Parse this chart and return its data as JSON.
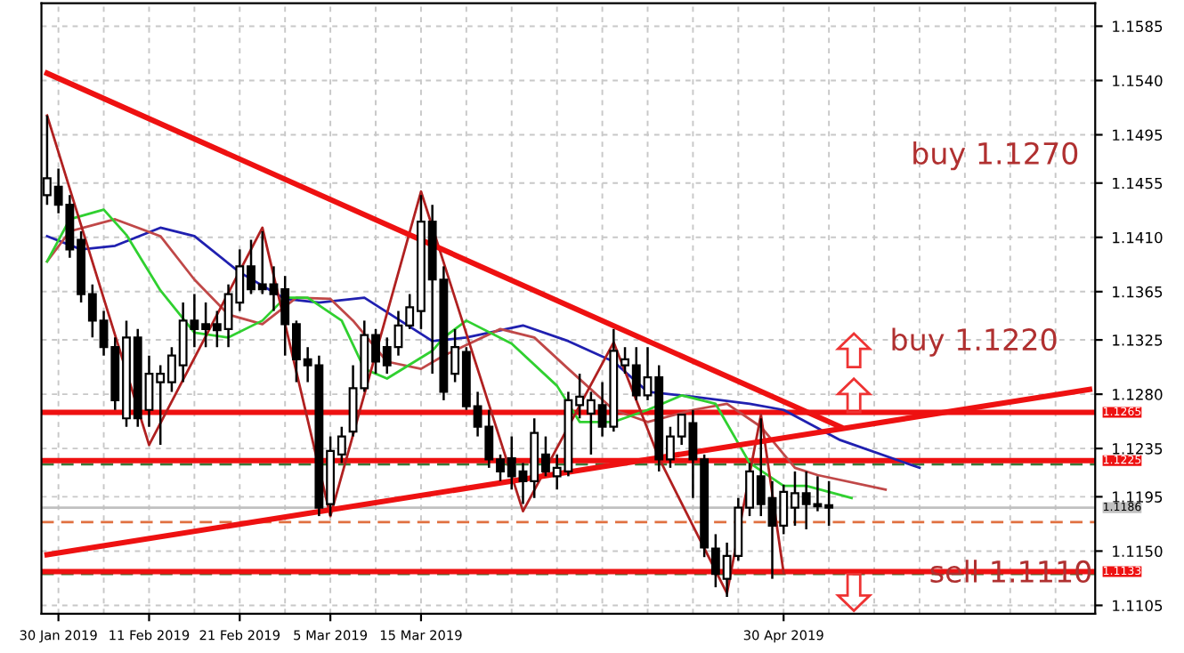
{
  "chart_data": {
    "type": "candlestick",
    "categories": [
      null,
      "30 Jan 2019",
      null,
      null,
      null,
      null,
      null,
      null,
      null,
      "11 Feb 2019",
      null,
      null,
      null,
      null,
      null,
      null,
      null,
      "21 Feb 2019",
      null,
      null,
      null,
      null,
      null,
      null,
      null,
      "5 Mar 2019",
      null,
      null,
      null,
      null,
      null,
      null,
      null,
      "15 Mar 2019",
      null,
      null,
      null,
      null,
      null,
      null,
      null,
      null,
      null,
      null,
      null,
      null,
      null,
      null,
      null,
      null,
      null,
      null,
      null,
      null,
      null,
      null,
      null,
      null,
      null,
      null,
      null,
      null,
      null,
      null,
      null,
      "30 Apr 2019",
      null,
      null,
      null,
      null,
      null,
      null,
      null,
      null,
      null,
      null,
      null,
      null,
      null,
      null,
      null,
      null,
      null,
      null,
      null,
      null,
      null,
      null,
      null,
      null,
      null,
      null,
      null
    ],
    "ohlc": [
      [
        1.1445,
        1.1511,
        1.1437,
        1.1459
      ],
      [
        1.1452,
        1.1467,
        1.143,
        1.1437
      ],
      [
        1.1437,
        1.1445,
        1.1393,
        1.14
      ],
      [
        1.1408,
        1.1415,
        1.1356,
        1.1363
      ],
      [
        1.1363,
        1.1371,
        1.1327,
        1.1341
      ],
      [
        1.1341,
        1.1349,
        1.1312,
        1.1319
      ],
      [
        1.1319,
        1.1327,
        1.1267,
        1.1275
      ],
      [
        1.126,
        1.1341,
        1.1253,
        1.1327
      ],
      [
        1.1327,
        1.1334,
        1.1253,
        1.126
      ],
      [
        1.1267,
        1.1312,
        1.1253,
        1.1297
      ],
      [
        1.129,
        1.1304,
        1.1238,
        1.1297
      ],
      [
        1.129,
        1.1319,
        1.1282,
        1.1312
      ],
      [
        1.1304,
        1.1356,
        1.129,
        1.1341
      ],
      [
        1.1341,
        1.1363,
        1.1319,
        1.1334
      ],
      [
        1.1338,
        1.1356,
        1.1319,
        1.1334
      ],
      [
        1.1338,
        1.1349,
        1.1319,
        1.1333
      ],
      [
        1.1334,
        1.1371,
        1.1319,
        1.1363
      ],
      [
        1.1356,
        1.14,
        1.1349,
        1.1386
      ],
      [
        1.1386,
        1.1408,
        1.1363,
        1.1367
      ],
      [
        1.1371,
        1.1415,
        1.1363,
        1.1367
      ],
      [
        1.1371,
        1.1386,
        1.1349,
        1.1363
      ],
      [
        1.1367,
        1.1378,
        1.1312,
        1.1338
      ],
      [
        1.1338,
        1.1341,
        1.129,
        1.1309
      ],
      [
        1.1309,
        1.1319,
        1.129,
        1.1304
      ],
      [
        1.1304,
        1.1312,
        1.1179,
        1.1186
      ],
      [
        1.1189,
        1.1245,
        1.1179,
        1.1233
      ],
      [
        1.123,
        1.1253,
        1.1223,
        1.1245
      ],
      [
        1.1249,
        1.1304,
        1.1245,
        1.1285
      ],
      [
        1.1285,
        1.1341,
        1.1282,
        1.1329
      ],
      [
        1.1329,
        1.1334,
        1.1297,
        1.1307
      ],
      [
        1.1319,
        1.1327,
        1.1297,
        1.1304
      ],
      [
        1.1319,
        1.1349,
        1.1312,
        1.1337
      ],
      [
        1.1337,
        1.1363,
        1.1334,
        1.1352
      ],
      [
        1.1349,
        1.1445,
        1.1334,
        1.1423
      ],
      [
        1.1423,
        1.1437,
        1.1297,
        1.1375
      ],
      [
        1.1375,
        1.1386,
        1.1275,
        1.1282
      ],
      [
        1.1297,
        1.1334,
        1.129,
        1.1319
      ],
      [
        1.1315,
        1.1319,
        1.1267,
        1.127
      ],
      [
        1.127,
        1.1282,
        1.1245,
        1.1253
      ],
      [
        1.1253,
        1.1267,
        1.1219,
        1.1226
      ],
      [
        1.1226,
        1.123,
        1.1208,
        1.1216
      ],
      [
        1.1227,
        1.1245,
        1.1201,
        1.1212
      ],
      [
        1.1216,
        1.1223,
        1.1189,
        1.1208
      ],
      [
        1.1208,
        1.126,
        1.1194,
        1.1248
      ],
      [
        1.123,
        1.1245,
        1.1212,
        1.1216
      ],
      [
        1.1212,
        1.123,
        1.1201,
        1.1219
      ],
      [
        1.1216,
        1.1282,
        1.1212,
        1.1275
      ],
      [
        1.1271,
        1.1297,
        1.126,
        1.1278
      ],
      [
        1.1264,
        1.1282,
        1.123,
        1.1275
      ],
      [
        1.1271,
        1.129,
        1.1245,
        1.1253
      ],
      [
        1.1253,
        1.1334,
        1.1249,
        1.1316
      ],
      [
        1.1304,
        1.1319,
        1.1297,
        1.1309
      ],
      [
        1.1304,
        1.1319,
        1.1275,
        1.1279
      ],
      [
        1.1279,
        1.1319,
        1.1275,
        1.1294
      ],
      [
        1.1294,
        1.1304,
        1.1216,
        1.1226
      ],
      [
        1.1226,
        1.1253,
        1.1219,
        1.1245
      ],
      [
        1.1245,
        1.1263,
        1.1238,
        1.1263
      ],
      [
        1.1256,
        1.1267,
        1.1194,
        1.1226
      ],
      [
        1.1226,
        1.123,
        1.1145,
        1.1153
      ],
      [
        1.1152,
        1.1164,
        1.112,
        1.1131
      ],
      [
        1.1127,
        1.1157,
        1.1112,
        1.1146
      ],
      [
        1.1146,
        1.1194,
        1.1142,
        1.1186
      ],
      [
        1.1186,
        1.1223,
        1.1179,
        1.1216
      ],
      [
        1.1212,
        1.126,
        1.1179,
        1.1189
      ],
      [
        1.1194,
        1.1208,
        1.1127,
        1.1171
      ],
      [
        1.1171,
        1.1205,
        1.1164,
        1.1199
      ],
      [
        1.1186,
        1.1216,
        1.1171,
        1.1198
      ],
      [
        1.1198,
        1.1216,
        1.1168,
        1.1189
      ],
      [
        1.1189,
        1.1212,
        1.1183,
        1.1187
      ],
      [
        1.1188,
        1.1208,
        1.1171,
        1.1186
      ],
      null,
      null,
      null,
      null,
      null,
      null,
      null,
      null,
      null,
      null,
      null,
      null,
      null,
      null,
      null,
      null,
      null,
      null,
      null,
      null,
      null,
      null,
      null
    ],
    "series": [
      {
        "type": "line",
        "color": "#2020b0",
        "values": [
          1.1411,
          null,
          null,
          1.14,
          null,
          null,
          1.1403,
          null,
          null,
          null,
          1.1418,
          null,
          null,
          1.1411,
          null,
          null,
          null,
          1.1381,
          null,
          null,
          null,
          1.1359,
          null,
          null,
          1.1356,
          null,
          null,
          null,
          1.136,
          null,
          null,
          null,
          null,
          null,
          1.1324,
          null,
          null,
          1.1327,
          null,
          null,
          null,
          null,
          1.1337,
          null,
          null,
          null,
          1.1324,
          null,
          null,
          null,
          1.1307,
          null,
          null,
          1.1282,
          null,
          null,
          null,
          1.1278,
          null,
          null,
          null,
          null,
          1.1272,
          null,
          null,
          1.1267,
          null,
          null,
          null,
          null,
          1.1242,
          null,
          null,
          null,
          null,
          null,
          null,
          1.1219,
          null,
          null,
          null,
          null,
          null,
          null,
          null,
          null,
          null,
          null,
          null,
          null,
          null,
          null,
          null
        ]
      },
      {
        "type": "line",
        "color": "#c04848",
        "values": [
          1.139,
          null,
          1.1415,
          null,
          null,
          null,
          1.1425,
          null,
          null,
          null,
          1.1411,
          null,
          null,
          1.1375,
          null,
          null,
          1.1346,
          null,
          null,
          1.1338,
          null,
          null,
          1.136,
          null,
          null,
          1.1359,
          null,
          1.1341,
          null,
          null,
          1.1307,
          null,
          null,
          1.1301,
          null,
          1.1312,
          null,
          null,
          null,
          null,
          1.1334,
          null,
          null,
          1.1327,
          null,
          null,
          1.1301,
          null,
          null,
          null,
          1.1267,
          null,
          null,
          1.1257,
          null,
          null,
          null,
          1.1267,
          null,
          null,
          1.1272,
          null,
          null,
          1.1253,
          null,
          null,
          1.1219,
          null,
          1.1213,
          null,
          null,
          null,
          null,
          null,
          1.1201,
          null,
          null,
          null,
          null,
          null,
          null,
          null,
          null,
          null,
          null,
          null,
          null,
          null,
          null,
          null,
          null,
          null,
          null
        ]
      },
      {
        "type": "line",
        "color": "#30d030",
        "values": [
          1.139,
          null,
          1.1425,
          null,
          null,
          1.1433,
          null,
          1.1412,
          null,
          null,
          1.1366,
          null,
          null,
          1.1331,
          null,
          null,
          1.1327,
          null,
          null,
          1.1341,
          null,
          1.136,
          null,
          1.136,
          null,
          null,
          1.1341,
          null,
          1.1301,
          null,
          1.1293,
          null,
          null,
          null,
          1.1316,
          1.1327,
          null,
          1.1341,
          null,
          null,
          null,
          1.1322,
          null,
          null,
          null,
          1.1287,
          null,
          1.1257,
          null,
          null,
          1.1257,
          null,
          null,
          1.1267,
          null,
          null,
          1.1279,
          null,
          null,
          1.1272,
          null,
          null,
          1.1223,
          null,
          null,
          1.1204,
          null,
          1.1204,
          null,
          null,
          null,
          1.1194,
          null,
          null,
          null,
          null,
          null,
          null,
          null,
          null,
          null,
          null,
          null,
          null,
          null,
          null,
          null,
          null,
          null,
          null,
          null,
          null,
          null
        ]
      },
      {
        "type": "line",
        "color": "#b02020",
        "values": [
          1.1511,
          null,
          null,
          null,
          null,
          null,
          null,
          null,
          null,
          1.1238,
          null,
          null,
          null,
          null,
          null,
          null,
          null,
          null,
          null,
          1.1418,
          null,
          null,
          null,
          null,
          null,
          1.1179,
          null,
          null,
          null,
          null,
          null,
          null,
          null,
          1.1448,
          null,
          null,
          null,
          null,
          null,
          null,
          null,
          null,
          1.1183,
          null,
          null,
          null,
          null,
          null,
          null,
          null,
          1.1323,
          null,
          null,
          null,
          1.1227,
          null,
          null,
          null,
          null,
          null,
          1.1115,
          null,
          null,
          1.1263,
          null,
          1.1132,
          null,
          null,
          null,
          null,
          null,
          null,
          null,
          null,
          null,
          null,
          null,
          null,
          null,
          null,
          null,
          null,
          null,
          null,
          null,
          null,
          null,
          null,
          null,
          null,
          null,
          null,
          null
        ]
      },
      {
        "type": "line",
        "color": "#ee1111",
        "values": [
          1.1546,
          null,
          null,
          null,
          null,
          null,
          null,
          null,
          null,
          null,
          null,
          null,
          null,
          null,
          null,
          null,
          null,
          null,
          null,
          null,
          null,
          null,
          null,
          null,
          null,
          null,
          null,
          null,
          null,
          null,
          null,
          null,
          null,
          null,
          null,
          null,
          null,
          null,
          null,
          null,
          null,
          null,
          null,
          null,
          null,
          null,
          null,
          null,
          null,
          null,
          null,
          null,
          null,
          null,
          null,
          null,
          null,
          null,
          null,
          null,
          null,
          null,
          null,
          null,
          null,
          null,
          null,
          null,
          null,
          null,
          1.1253,
          null,
          null,
          null,
          null,
          null,
          null,
          null,
          null,
          null,
          null,
          null,
          null,
          null,
          null,
          null,
          null,
          null,
          null,
          null,
          null,
          null,
          null
        ]
      },
      {
        "type": "line",
        "color": "#ee1111",
        "values": [
          1.1147,
          null,
          null,
          null,
          null,
          null,
          null,
          null,
          null,
          null,
          null,
          null,
          null,
          null,
          null,
          null,
          null,
          null,
          null,
          null,
          null,
          null,
          null,
          null,
          null,
          null,
          null,
          null,
          null,
          null,
          null,
          null,
          null,
          null,
          null,
          null,
          null,
          null,
          null,
          null,
          null,
          null,
          null,
          null,
          null,
          null,
          null,
          null,
          null,
          null,
          null,
          null,
          null,
          null,
          null,
          null,
          null,
          null,
          null,
          null,
          null,
          null,
          null,
          null,
          null,
          null,
          null,
          null,
          null,
          null,
          null,
          null,
          null,
          null,
          null,
          null,
          null,
          null,
          null,
          null,
          null,
          null,
          null,
          null,
          null,
          null,
          null,
          null,
          null,
          null,
          null,
          null,
          1.1284
        ]
      }
    ],
    "ref_lines": [
      {
        "axis": "y",
        "value": 1.1222,
        "color": "#3a7a3a",
        "line_style": "dashed"
      },
      {
        "axis": "y",
        "value": 1.1131,
        "color": "#3a7a3a",
        "line_style": "dashed"
      },
      {
        "axis": "y",
        "value": 1.1174,
        "color": "#e07040",
        "line_style": "dashed"
      },
      {
        "axis": "y",
        "value": 1.1186,
        "label": "1.1186",
        "color": "#c0c0c0",
        "line_style": "solid"
      },
      {
        "axis": "y",
        "value": 1.1265,
        "label": "1.1265",
        "color": "#ee1111",
        "line_style": "solid"
      },
      {
        "axis": "y",
        "value": 1.1225,
        "label": "1.1225",
        "color": "#ee1111",
        "line_style": "solid"
      },
      {
        "axis": "y",
        "value": 1.1133,
        "label": "1.1133",
        "color": "#ee1111",
        "line_style": "solid"
      }
    ],
    "annotations": [
      "buy 1.1270",
      "buy 1.1220",
      "sell 1.1110"
    ],
    "ylim": [
      1.1098,
      1.1604
    ],
    "yticks": [
      1.1585,
      {
        "value": 1.154,
        "label": "1.1540"
      },
      1.1495,
      1.1455,
      {
        "value": 1.141,
        "label": "1.1410"
      },
      1.1365,
      1.1325,
      {
        "value": 1.128,
        "label": "1.1280"
      },
      1.1235,
      1.1195,
      {
        "value": 1.115,
        "label": "1.1150"
      },
      1.1105
    ],
    "grid": true
  }
}
